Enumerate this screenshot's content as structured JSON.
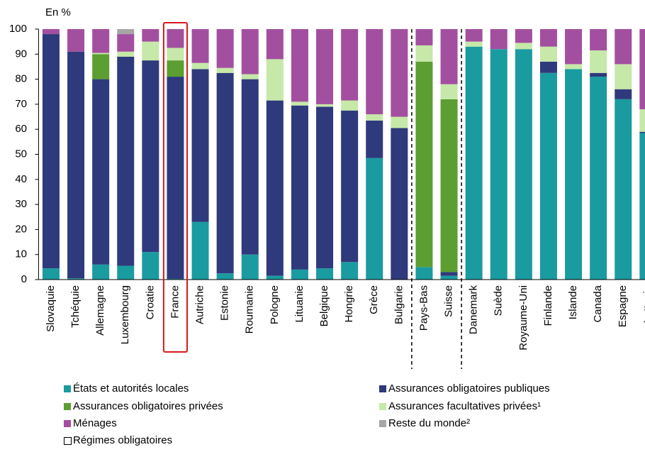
{
  "chart_data": {
    "type": "stacked-bar",
    "y_label": "En %",
    "categories": [
      "Slovaquie",
      "Tchéquie",
      "Allemagne",
      "Luxembourg",
      "Croatie",
      "France",
      "Autriche",
      "Estonie",
      "Roumanie",
      "Pologne",
      "Lituanie",
      "Belgique",
      "Hongrie",
      "Grèce",
      "Bulgarie",
      "Pays-Bas",
      "Suisse",
      "Danemark",
      "Suède",
      "Royaume-Uni",
      "Finlande",
      "Islande",
      "Canada",
      "Espagne",
      "Lettonie"
    ],
    "series": [
      {
        "name": "États et autorités locales",
        "color": "#1a9ba0",
        "values": [
          4.5,
          0.5,
          6,
          5.5,
          11,
          0.3,
          23,
          2.5,
          10,
          1.5,
          4,
          4.5,
          7,
          48.5,
          0,
          5,
          1.5,
          93,
          92,
          92,
          82.5,
          84,
          81,
          72,
          58.5
        ]
      },
      {
        "name": "Assurances obligatoires publiques",
        "color": "#2e3a7c",
        "values": [
          93.5,
          90.5,
          74,
          83.5,
          76.5,
          80.7,
          61,
          80,
          70,
          70,
          65.5,
          64.5,
          60.5,
          15,
          60.5,
          0,
          1.5,
          0,
          0,
          0,
          4.5,
          0,
          1.5,
          4,
          0.5
        ]
      },
      {
        "name": "Assurances obligatoires privées",
        "color": "#5c9e31",
        "values": [
          0,
          0,
          10,
          0,
          0,
          6.5,
          0,
          0,
          0,
          0,
          0,
          0,
          0,
          0,
          0,
          82,
          69,
          0,
          0,
          0,
          0,
          0,
          0,
          0,
          0
        ]
      },
      {
        "name": "Assurances facultatives privées¹",
        "color": "#c6e8a8",
        "values": [
          0,
          0,
          0.5,
          2,
          7.5,
          5,
          2.5,
          2,
          2,
          16.5,
          1.5,
          1,
          4,
          2.5,
          4.5,
          6.5,
          6,
          2,
          0,
          2.5,
          6,
          2,
          9,
          10,
          9
        ]
      },
      {
        "name": "Ménages",
        "color": "#a34f9f",
        "values": [
          2,
          9,
          9.5,
          7,
          5,
          7.5,
          13.5,
          15.5,
          18,
          12,
          29,
          30,
          28.5,
          34,
          35,
          6.5,
          22,
          5,
          8,
          5.5,
          7,
          14,
          8.5,
          14,
          32
        ]
      },
      {
        "name": "Reste du monde²",
        "color": "#a6a6a6",
        "values": [
          0,
          0,
          0,
          2,
          0,
          0,
          0,
          0,
          0,
          0,
          0,
          0,
          0,
          0,
          0,
          0,
          0,
          0,
          0,
          0,
          0,
          0,
          0,
          0,
          0
        ]
      }
    ],
    "outline_legend": "Régimes obligatoires",
    "ylim": [
      0,
      100
    ],
    "yticks": [
      0,
      10,
      20,
      30,
      40,
      50,
      60,
      70,
      80,
      90,
      100
    ]
  }
}
